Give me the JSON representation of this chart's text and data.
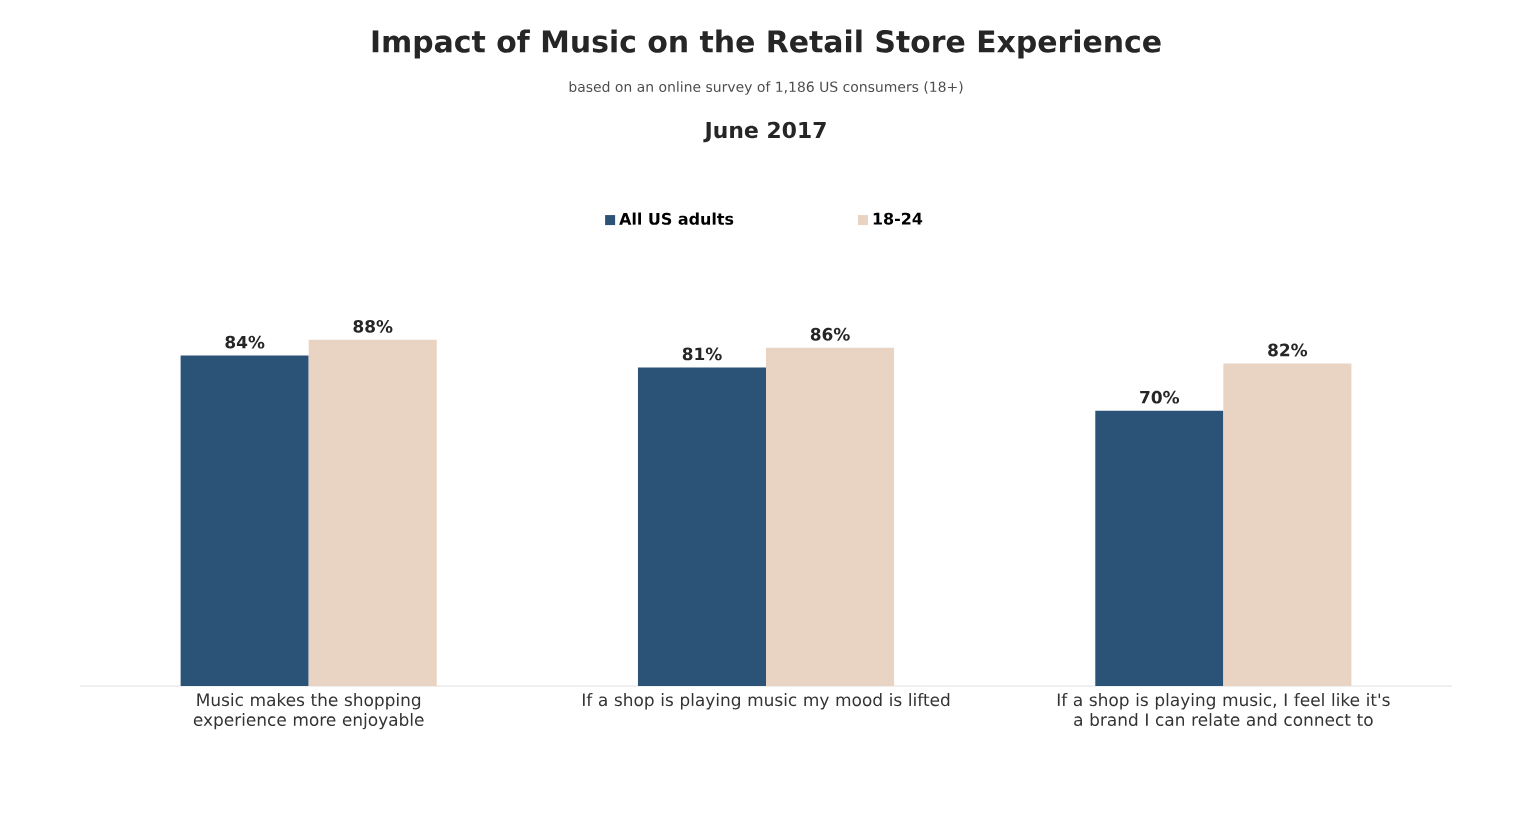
{
  "chart_data": {
    "type": "bar",
    "title": "Impact of Music on the Retail Store Experience",
    "subtitle": "based on an online survey of 1,186 US consumers (18+)",
    "annotations": [
      "June 2017"
    ],
    "categories": [
      "Music makes the shopping experience more enjoyable",
      "If a shop is playing music my mood is lifted",
      "If a shop is playing music, I feel like it's a brand I can relate and connect to"
    ],
    "series": [
      {
        "name": "All US adults",
        "color": "#2b5277",
        "values": [
          84,
          81,
          70
        ],
        "value_labels": [
          "84%",
          "81%",
          "70%"
        ]
      },
      {
        "name": "18-24",
        "color": "#e9d3c2",
        "values": [
          88,
          86,
          82
        ],
        "value_labels": [
          "88%",
          "86%",
          "82%"
        ]
      }
    ],
    "legend": "top"
  }
}
